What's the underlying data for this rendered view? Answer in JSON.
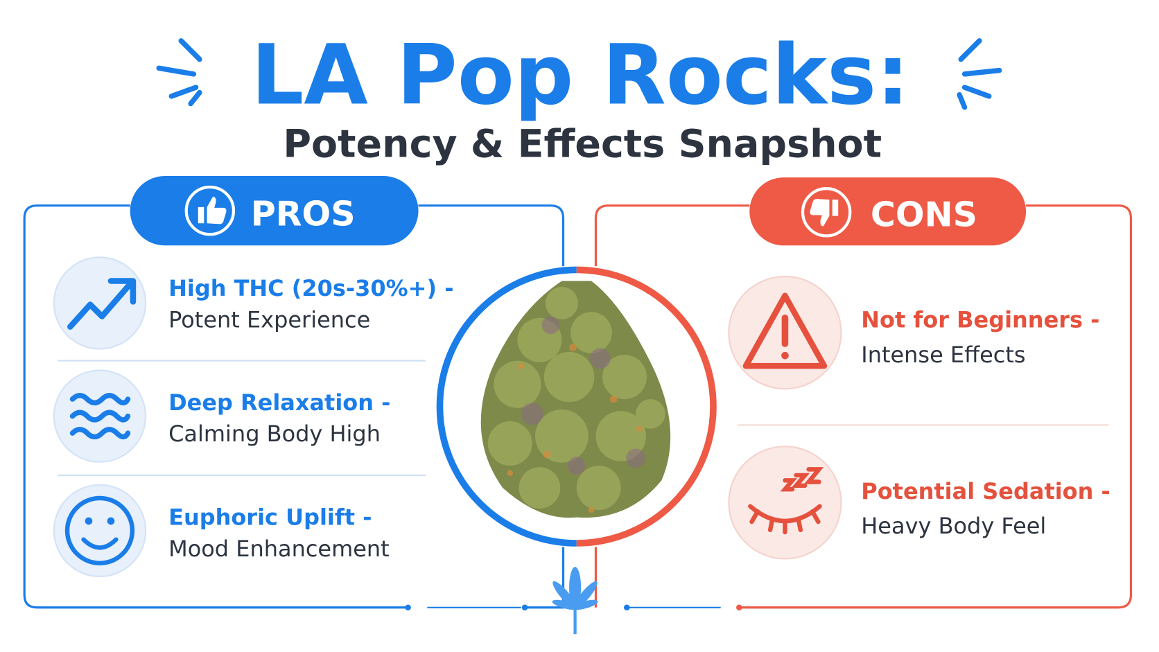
{
  "header": {
    "title": "LA Pop Rocks:",
    "subtitle": "Potency & Effects Snapshot"
  },
  "pros": {
    "label": "PROS",
    "items": [
      {
        "title": "High THC (20s-30%+) -",
        "text": "Potent Experience"
      },
      {
        "title": "Deep Relaxation -",
        "text": "Calming Body High"
      },
      {
        "title": "Euphoric Uplift -",
        "text": "Mood Enhancement"
      }
    ]
  },
  "cons": {
    "label": "CONS",
    "items": [
      {
        "title": "Not for Beginners -",
        "text": "Intense Effects"
      },
      {
        "title": "Potential Sedation -",
        "text": "Heavy Body Feel"
      }
    ]
  }
}
